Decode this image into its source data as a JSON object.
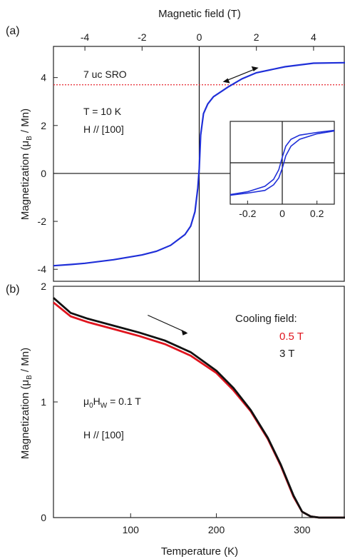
{
  "colors": {
    "blue": "#1f2fd8",
    "red": "#e0141e",
    "black": "#111111",
    "red_dotted": "#e8262e"
  },
  "chart_data": [
    {
      "panel": "(a)",
      "type": "line",
      "xlabel": "Magnetic field (T)",
      "ylabel": "Magnetization (μB / Mn)",
      "xaxis_position": "top",
      "xlim": [
        -5.1,
        5.1
      ],
      "ylim": [
        -4.5,
        5.3
      ],
      "xticks": [
        -4,
        -2,
        0,
        2,
        4
      ],
      "yticks": [
        -4,
        -2,
        0,
        2,
        4
      ],
      "annotations": [
        "7 uc SRO",
        "T = 10 K",
        "H // [100]"
      ],
      "reference_line": {
        "y": 3.7,
        "style": "dotted",
        "color": "red"
      },
      "series": [
        {
          "color": "blue",
          "x": [
            -5.1,
            -4.5,
            -4.0,
            -3.0,
            -2.0,
            -1.5,
            -1.0,
            -0.5,
            -0.3,
            -0.15,
            -0.05,
            0.0,
            0.05,
            0.15,
            0.3,
            0.5,
            1.0,
            1.5,
            2.0,
            3.0,
            4.0,
            5.1
          ],
          "y": [
            -3.85,
            -3.8,
            -3.75,
            -3.6,
            -3.4,
            -3.25,
            -3.0,
            -2.55,
            -2.2,
            -1.6,
            -0.6,
            0.2,
            1.6,
            2.5,
            2.9,
            3.2,
            3.6,
            3.95,
            4.2,
            4.45,
            4.6,
            4.62
          ]
        }
      ],
      "inset": {
        "xticks": [
          -0.2,
          0,
          0.2
        ],
        "xlim": [
          -0.3,
          0.3
        ],
        "branches": [
          {
            "x": [
              -0.3,
              -0.2,
              -0.1,
              -0.05,
              -0.02,
              0.0,
              0.02,
              0.05,
              0.1,
              0.2,
              0.3
            ],
            "y": [
              -2.3,
              -2.1,
              -1.7,
              -1.2,
              -0.5,
              0.4,
              1.2,
              1.7,
              2.0,
              2.2,
              2.35
            ]
          },
          {
            "x": [
              -0.3,
              -0.2,
              -0.1,
              -0.05,
              -0.02,
              0.0,
              0.02,
              0.05,
              0.1,
              0.2,
              0.3
            ],
            "y": [
              -2.35,
              -2.2,
              -2.0,
              -1.6,
              -1.1,
              -0.4,
              0.5,
              1.2,
              1.7,
              2.1,
              2.3
            ]
          }
        ]
      }
    },
    {
      "panel": "(b)",
      "type": "line",
      "xlabel": "Temperature (K)",
      "ylabel": "Magnetization (μB / Mn)",
      "xlim": [
        10,
        350
      ],
      "ylim": [
        0,
        2.0
      ],
      "xticks": [
        100,
        200,
        300
      ],
      "yticks": [
        0,
        1,
        2
      ],
      "annotations": [
        "μ0HW = 0.1 T",
        "H // [100]"
      ],
      "legend_title": "Cooling field:",
      "legend_position": "top-right",
      "series": [
        {
          "name": "0.5 T",
          "color": "red",
          "x": [
            10,
            30,
            50,
            80,
            110,
            140,
            170,
            200,
            220,
            240,
            260,
            275,
            290,
            300,
            310,
            320,
            350
          ],
          "y": [
            1.86,
            1.74,
            1.69,
            1.63,
            1.57,
            1.5,
            1.4,
            1.25,
            1.1,
            0.92,
            0.68,
            0.45,
            0.18,
            0.05,
            0.01,
            0.0,
            0.0
          ]
        },
        {
          "name": "3 T",
          "color": "black",
          "x": [
            10,
            30,
            50,
            80,
            110,
            140,
            170,
            200,
            220,
            240,
            260,
            275,
            290,
            300,
            310,
            320,
            350
          ],
          "y": [
            1.9,
            1.77,
            1.72,
            1.66,
            1.6,
            1.53,
            1.43,
            1.27,
            1.12,
            0.93,
            0.69,
            0.46,
            0.19,
            0.05,
            0.01,
            0.0,
            0.0
          ]
        }
      ]
    }
  ]
}
